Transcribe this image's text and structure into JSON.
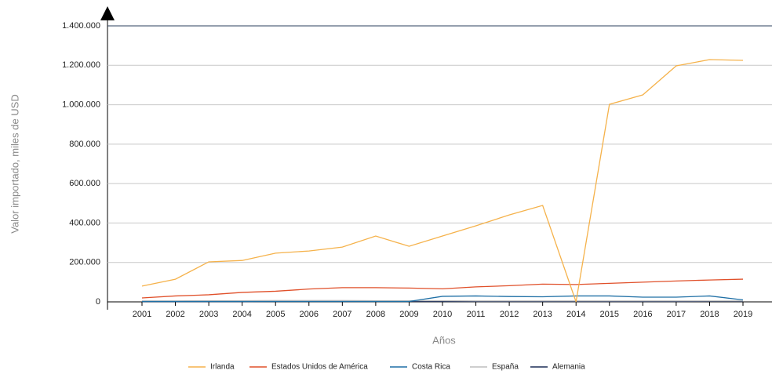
{
  "chart_data": {
    "type": "line",
    "x_label": "Años",
    "y_label": "Valor importado, miles de USD",
    "categories": [
      "2001",
      "2002",
      "2003",
      "2004",
      "2005",
      "2006",
      "2007",
      "2008",
      "2009",
      "2010",
      "2011",
      "2012",
      "2013",
      "2014",
      "2015",
      "2016",
      "2017",
      "2018",
      "2019"
    ],
    "series": [
      {
        "name": "Irlanda",
        "color": "#f5b24b",
        "values": [
          80000,
          115000,
          203000,
          210000,
          247000,
          258000,
          278000,
          334000,
          282000,
          334000,
          386000,
          441000,
          489000,
          0,
          1002000,
          1050000,
          1197000,
          1229000,
          1225000
        ]
      },
      {
        "name": "Estados Unidos de América",
        "color": "#e0502a",
        "values": [
          20000,
          30000,
          36000,
          48000,
          54000,
          65000,
          72000,
          72000,
          70000,
          66000,
          76000,
          82000,
          90000,
          88000,
          94000,
          100000,
          106000,
          111000,
          115000
        ]
      },
      {
        "name": "Costa Rica",
        "color": "#1e6fa5",
        "values": [
          2000,
          2000,
          2000,
          2000,
          2000,
          2000,
          2000,
          2000,
          2000,
          28000,
          30000,
          27000,
          26000,
          30000,
          30000,
          24000,
          24000,
          30000,
          10000
        ]
      },
      {
        "name": "España",
        "color": "#bdbdbd",
        "values": [
          5000,
          5000,
          6000,
          6000,
          7000,
          7000,
          7000,
          6000,
          6000,
          6000,
          5000,
          5000,
          5000,
          5000,
          5000,
          5000,
          5000,
          5000,
          5000
        ]
      },
      {
        "name": "Alemania",
        "color": "#1b2d57",
        "values": [
          1000,
          1000,
          1000,
          1000,
          2000,
          2000,
          2000,
          2000,
          2000,
          2000,
          2000,
          2000,
          2000,
          2000,
          2000,
          2000,
          2000,
          3000,
          3000
        ]
      }
    ],
    "ylim": [
      0,
      1400000
    ],
    "yticks": [
      0,
      {
        "value": 200000,
        "label": "200.000"
      },
      {
        "value": 400000,
        "label": "400.000"
      },
      {
        "value": 600000,
        "label": "600.000"
      },
      {
        "value": 800000,
        "label": "800.000"
      },
      {
        "value": 1000000,
        "label": "1.000.000"
      },
      {
        "value": 1200000,
        "label": "1.200.000"
      },
      {
        "value": 1400000,
        "label": "1.400.000"
      }
    ],
    "grid": true,
    "legend": "bottom"
  }
}
